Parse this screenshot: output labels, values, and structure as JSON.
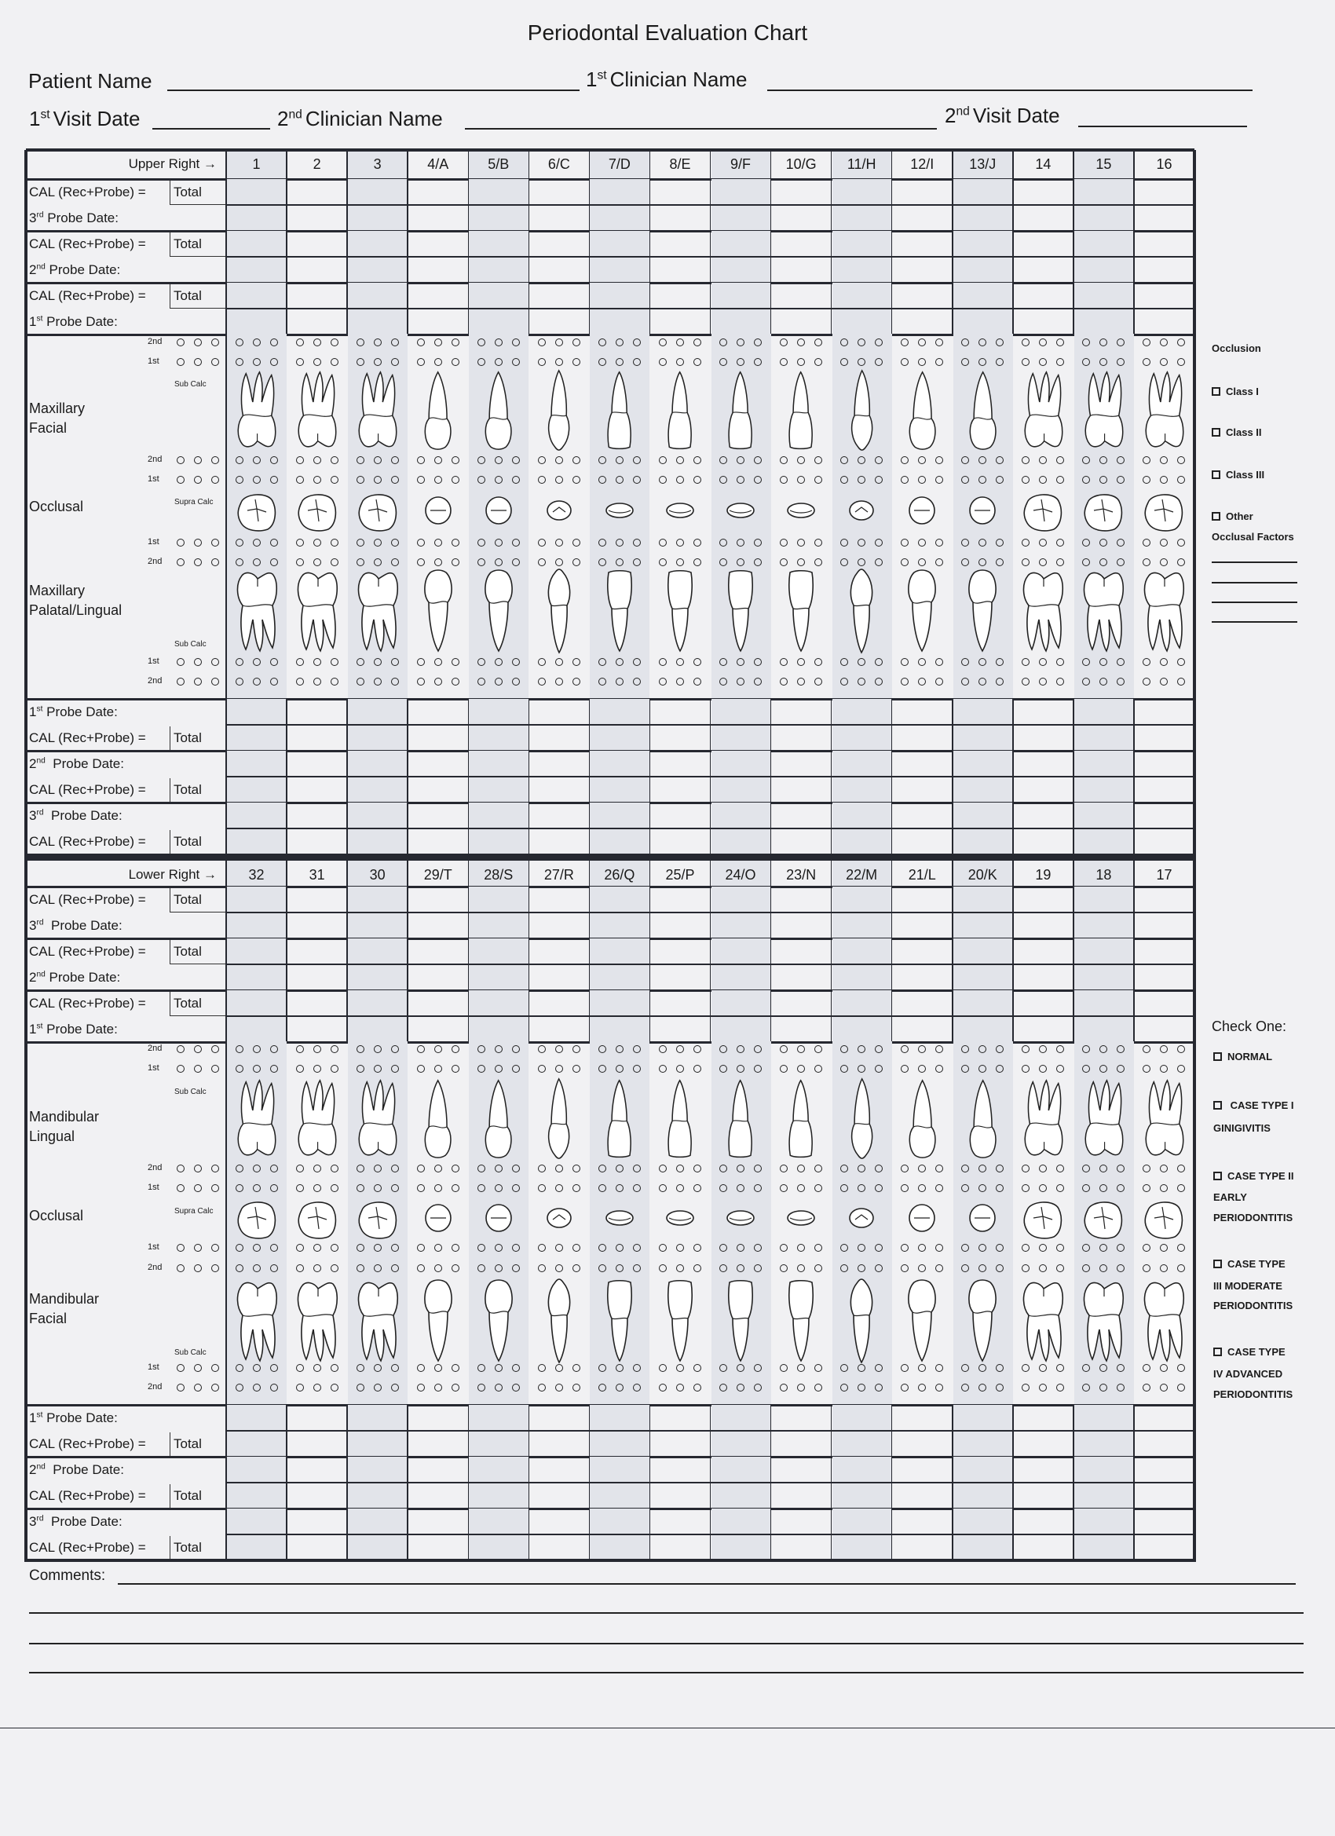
{
  "title": "Periodontal Evaluation Chart",
  "header_fields": {
    "patient_name": {
      "label": "Patient Name",
      "value": ""
    },
    "clinician1": {
      "num": "1",
      "sup": "st",
      "label": "Clinician Name",
      "value": ""
    },
    "visit1": {
      "num": "1",
      "sup": "st",
      "label": "Visit Date",
      "value": ""
    },
    "clinician2": {
      "num": "2",
      "sup": "nd",
      "label": "Clinician Name",
      "value": ""
    },
    "visit2": {
      "num": "2",
      "sup": "nd",
      "label": "Visit Date",
      "value": ""
    }
  },
  "upper": {
    "header_label": "Upper Right →",
    "teeth": [
      "1",
      "2",
      "3",
      "4/A",
      "5/B",
      "6/C",
      "7/D",
      "8/E",
      "9/F",
      "10/G",
      "11/H",
      "12/I",
      "13/J",
      "14",
      "15",
      "16"
    ],
    "tooth_types": [
      "molar",
      "molar",
      "molar",
      "premolar",
      "premolar",
      "canine",
      "incisor",
      "incisor",
      "incisor",
      "incisor",
      "canine",
      "premolar",
      "premolar",
      "molar",
      "molar",
      "molar"
    ],
    "top_blocks": [
      [
        {
          "label": "CAL (Rec+Probe) =",
          "total": "Total"
        },
        {
          "num": "3",
          "sup": "rd",
          "text": " Probe Date:"
        }
      ],
      [
        {
          "label": "CAL (Rec+Probe) =",
          "total": "Total"
        },
        {
          "num": "2",
          "sup": "nd",
          "text": " Probe Date:"
        }
      ],
      [
        {
          "label": "CAL (Rec+Probe) =",
          "total": "Total"
        },
        {
          "num": "1",
          "sup": "st",
          "text": " Probe Date:"
        }
      ]
    ],
    "bottom_blocks": [
      [
        {
          "num": "1",
          "sup": "st",
          "text": " Probe Date:"
        },
        {
          "label": "CAL (Rec+Probe) =",
          "total": "Total"
        }
      ],
      [
        {
          "num": "2",
          "sup": "nd",
          "text": "  Probe Date:"
        },
        {
          "label": "CAL (Rec+Probe) =",
          "total": "Total"
        }
      ],
      [
        {
          "num": "3",
          "sup": "rd",
          "text": "  Probe Date:"
        },
        {
          "label": "CAL (Rec+Probe) =",
          "total": "Total"
        }
      ]
    ],
    "sections": [
      "Maxillary\nFacial",
      "Occlusal",
      "Maxillary\nPalatal/Lingual"
    ],
    "probe_labels": [
      "2nd",
      "1st",
      "2nd",
      "1st",
      "1st",
      "2nd",
      "1st",
      "2nd"
    ],
    "calc_labels": [
      "Sub Calc",
      "Supra Calc",
      "Sub Calc"
    ]
  },
  "lower": {
    "header_label": "Lower Right →",
    "teeth": [
      "32",
      "31",
      "30",
      "29/T",
      "28/S",
      "27/R",
      "26/Q",
      "25/P",
      "24/O",
      "23/N",
      "22/M",
      "21/L",
      "20/K",
      "19",
      "18",
      "17"
    ],
    "tooth_types": [
      "molar",
      "molar",
      "molar",
      "premolar",
      "premolar",
      "canine",
      "incisor",
      "incisor",
      "incisor",
      "incisor",
      "canine",
      "premolar",
      "premolar",
      "molar",
      "molar",
      "molar"
    ],
    "top_blocks": [
      [
        {
          "label": "CAL (Rec+Probe) =",
          "total": "Total"
        },
        {
          "num": "3",
          "sup": "rd",
          "text": "  Probe Date:"
        }
      ],
      [
        {
          "label": "CAL (Rec+Probe) =",
          "total": "Total"
        },
        {
          "num": "2",
          "sup": "nd",
          "text": " Probe Date:"
        }
      ],
      [
        {
          "label": "CAL (Rec+Probe) =",
          "total": "Total"
        },
        {
          "num": "1",
          "sup": "st",
          "text": " Probe Date:"
        }
      ]
    ],
    "bottom_blocks": [
      [
        {
          "num": "1",
          "sup": "st",
          "text": " Probe Date:"
        },
        {
          "label": "CAL (Rec+Probe) =",
          "total": "Total"
        }
      ],
      [
        {
          "num": "2",
          "sup": "nd",
          "text": "  Probe Date:"
        },
        {
          "label": "CAL (Rec+Probe) =",
          "total": "Total"
        }
      ],
      [
        {
          "num": "3",
          "sup": "rd",
          "text": "  Probe Date:"
        },
        {
          "label": "CAL (Rec+Probe) =",
          "total": "Total"
        }
      ]
    ],
    "sections": [
      "Mandibular\nLingual",
      "Occlusal",
      "Mandibular\nFacial"
    ],
    "probe_labels": [
      "2nd",
      "1st",
      "2nd",
      "1st",
      "1st",
      "2nd",
      "1st",
      "2nd"
    ],
    "calc_labels": [
      "Sub Calc",
      "Supra Calc",
      "Sub Calc"
    ]
  },
  "occlusion_panel": {
    "title": "Occlusion",
    "options": [
      "Class I",
      "Class II",
      "Class III",
      "Other"
    ],
    "factors_label": "Occlusal Factors"
  },
  "case_panel": {
    "title": "Check One:",
    "options": [
      {
        "label": "NORMAL",
        "lines": []
      },
      {
        "label": " CASE TYPE I",
        "lines": [
          "GINIGIVITIS"
        ]
      },
      {
        "label": "CASE TYPE II",
        "lines": [
          "EARLY",
          "PERIODONTITIS"
        ]
      },
      {
        "label": "CASE TYPE",
        "lines": [
          "III MODERATE",
          "PERIODONTITIS"
        ]
      },
      {
        "label": "CASE TYPE",
        "lines": [
          "IV ADVANCED",
          "PERIODONTITIS"
        ]
      }
    ]
  },
  "comments_label": "Comments:",
  "colors": {
    "shade": "#e2e4ea",
    "ink": "#262830",
    "paper": "#f1f1f3"
  }
}
